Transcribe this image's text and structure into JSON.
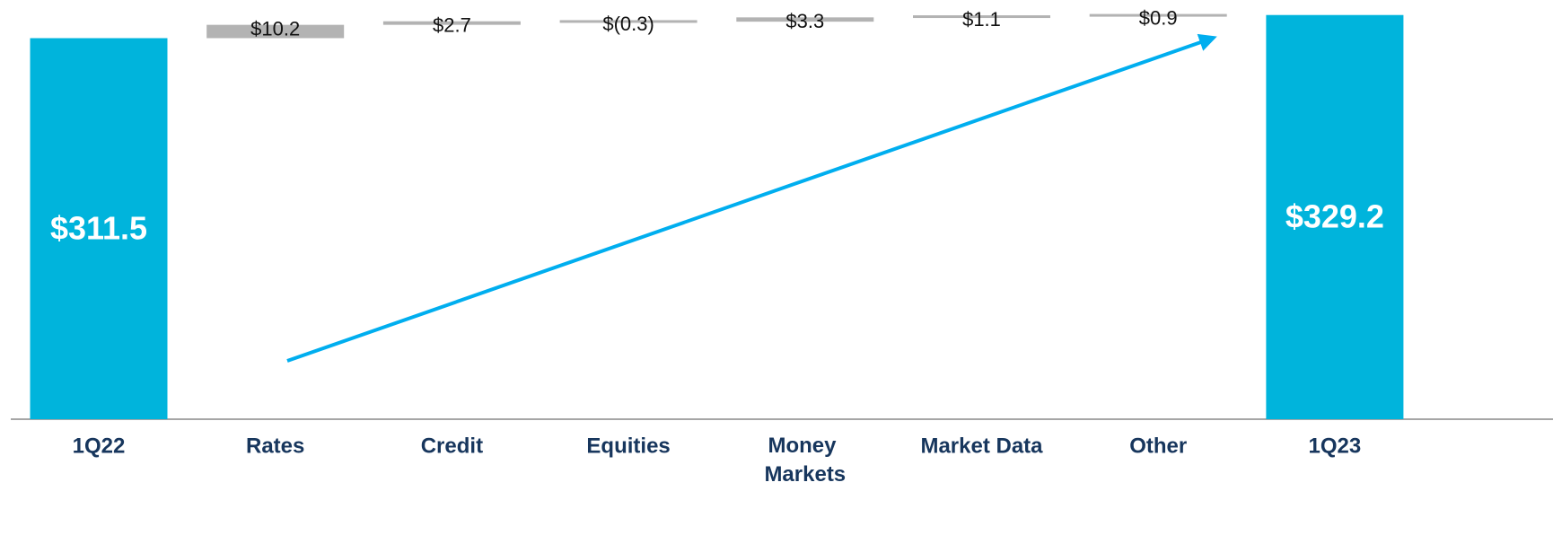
{
  "chart_data": {
    "type": "waterfall",
    "categories": [
      "1Q22",
      "Rates",
      "Credit",
      "Equities",
      "Money Markets",
      "Market Data",
      "Other",
      "1Q23"
    ],
    "values": [
      311.5,
      10.2,
      2.7,
      -0.3,
      3.3,
      1.1,
      0.9,
      329.2
    ],
    "value_labels": [
      "$311.5",
      "$10.2",
      "$2.7",
      "$(0.3)",
      "$3.3",
      "$1.1",
      "$0.9",
      "$329.2"
    ],
    "total_color": "#00b4dc",
    "change_color": "#b3b3b3",
    "ylim": [
      20,
      340
    ]
  }
}
